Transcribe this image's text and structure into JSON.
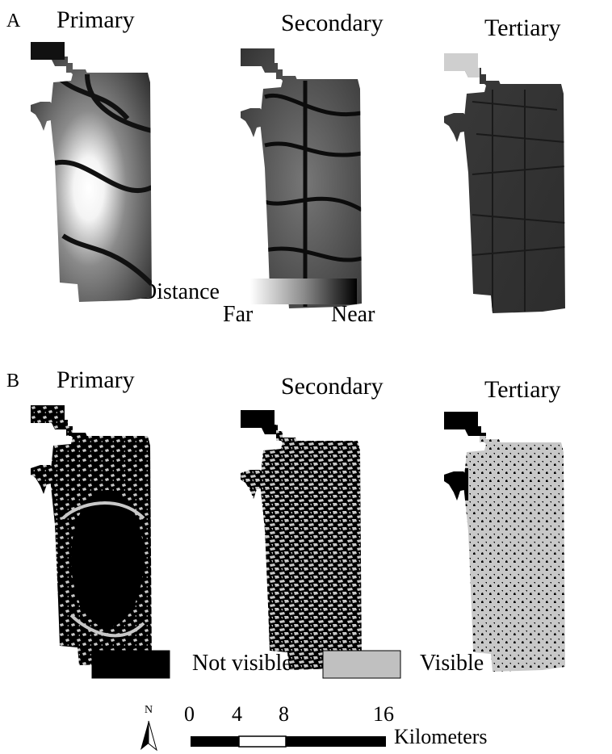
{
  "panel_a": {
    "letter": "A",
    "maps": [
      {
        "title": "Primary",
        "pattern": "distance-primary"
      },
      {
        "title": "Secondary",
        "pattern": "distance-secondary"
      },
      {
        "title": "Tertiary",
        "pattern": "distance-tertiary"
      }
    ],
    "legend": {
      "label": "Distance",
      "low": "Far",
      "high": "Near"
    }
  },
  "panel_b": {
    "letter": "B",
    "maps": [
      {
        "title": "Primary",
        "pattern": "visibility-primary"
      },
      {
        "title": "Secondary",
        "pattern": "visibility-secondary"
      },
      {
        "title": "Tertiary",
        "pattern": "visibility-tertiary"
      }
    ],
    "legend": {
      "not_visible": {
        "label": "Not visible",
        "color": "#000000"
      },
      "visible": {
        "label": "Visible",
        "color": "#c0c0c0"
      }
    }
  },
  "north_arrow": {
    "label": "N"
  },
  "scale_bar": {
    "ticks": [
      "0",
      "4",
      "8",
      "16"
    ],
    "unit": "Kilometers"
  }
}
